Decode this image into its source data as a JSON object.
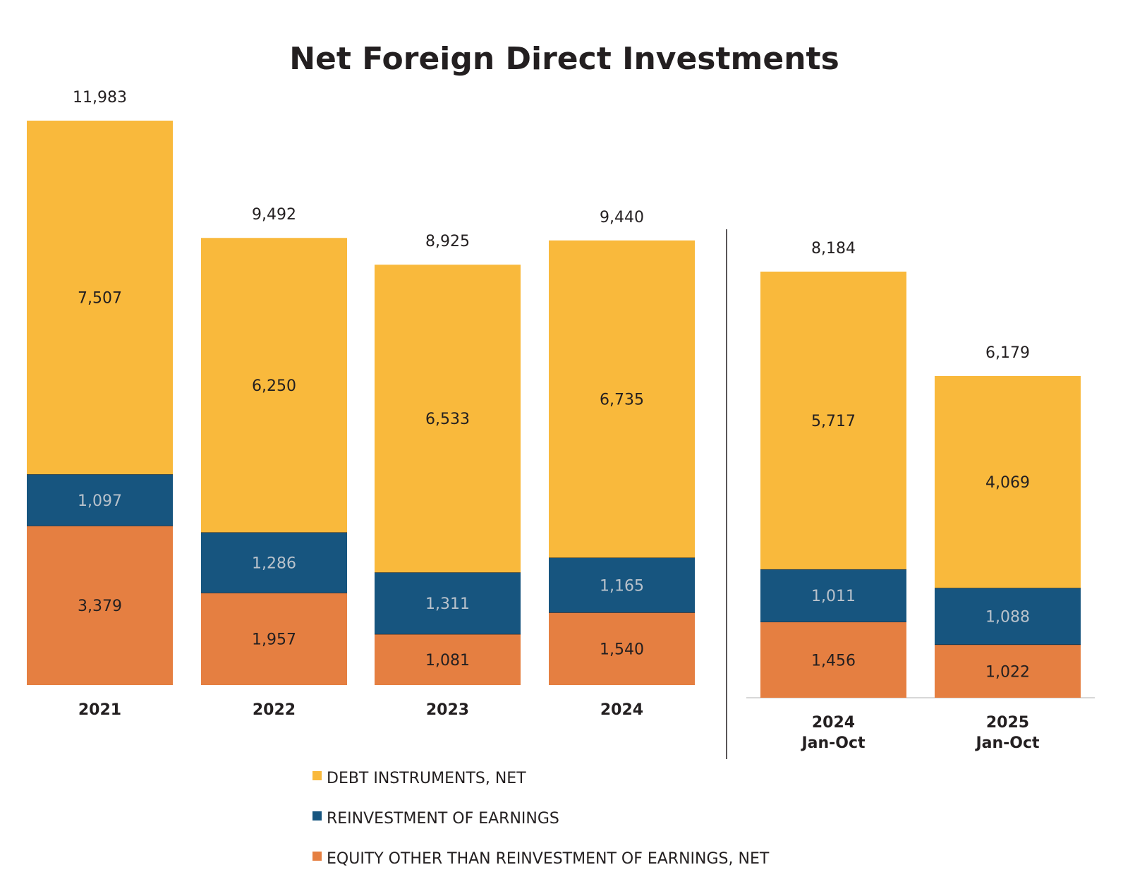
{
  "chart_data": {
    "type": "bar",
    "stacked": true,
    "title": "Net Foreign Direct Investments",
    "categories": [
      [
        "2021"
      ],
      [
        "2022"
      ],
      [
        "2023"
      ],
      [
        "2024"
      ],
      [
        "2024",
        "Jan-Oct"
      ],
      [
        "2025",
        "Jan-Oct"
      ]
    ],
    "panels": [
      [
        0,
        1,
        2,
        3
      ],
      [
        4,
        5
      ]
    ],
    "series": [
      {
        "name": "EQUITY OTHER THAN REINVESTMENT OF EARNINGS, NET",
        "color": "#E57F41",
        "label_color": "#231f20",
        "values": [
          3379,
          1957,
          1081,
          1540,
          1456,
          1022
        ]
      },
      {
        "name": "REINVESTMENT OF EARNINGS",
        "color": "#17557F",
        "label_color": "#b9c2cb",
        "values": [
          1097,
          1286,
          1311,
          1165,
          1011,
          1088
        ]
      },
      {
        "name": "DEBT INSTRUMENTS, NET",
        "color": "#F9B93C",
        "label_color": "#231f20",
        "values": [
          7507,
          6250,
          6533,
          6735,
          5717,
          4069
        ]
      }
    ],
    "totals": [
      11983,
      9492,
      8925,
      9440,
      8184,
      6179
    ],
    "legend_order": [
      2,
      1,
      0
    ],
    "legend_position": "bottom",
    "grid": false
  }
}
